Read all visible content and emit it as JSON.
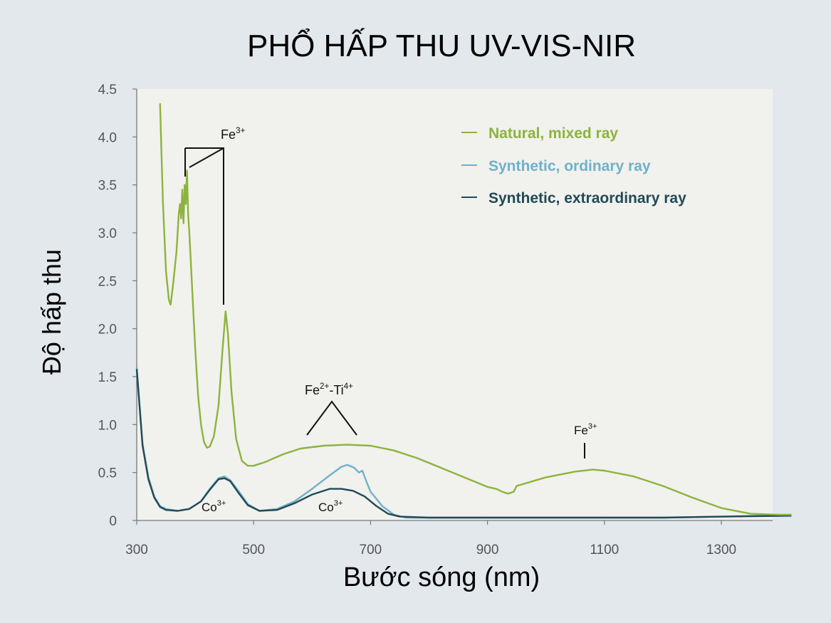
{
  "page_title": "PHỔ HẤP THU UV-VIS-NIR",
  "chart_data": {
    "type": "line",
    "title": "PHỔ HẤP THU UV-VIS-NIR",
    "xlabel": "Bước sóng (nm)",
    "ylabel": "Độ hấp thu",
    "xlim": [
      300,
      1420
    ],
    "ylim": [
      0,
      4.5
    ],
    "x_ticks": [
      300,
      500,
      700,
      900,
      1100,
      1300
    ],
    "y_ticks": [
      0,
      0.5,
      1.0,
      1.5,
      2.0,
      2.5,
      3.0,
      3.5,
      4.0,
      4.5
    ],
    "y_tick_labels": [
      "0",
      "0.5",
      "1.0",
      "1.5",
      "2.0",
      "2.5",
      "3.0",
      "3.5",
      "4.0",
      "4.5"
    ],
    "grid": false,
    "legend_position": "top-right",
    "series": [
      {
        "name": "Natural, mixed ray",
        "color": "#8db33c",
        "points": [
          [
            340,
            4.35
          ],
          [
            342,
            3.9
          ],
          [
            345,
            3.3
          ],
          [
            350,
            2.6
          ],
          [
            355,
            2.3
          ],
          [
            358,
            2.25
          ],
          [
            362,
            2.45
          ],
          [
            368,
            2.8
          ],
          [
            372,
            3.2
          ],
          [
            374,
            3.3
          ],
          [
            376,
            3.15
          ],
          [
            378,
            3.45
          ],
          [
            380,
            3.1
          ],
          [
            382,
            3.5
          ],
          [
            384,
            3.3
          ],
          [
            386,
            3.65
          ],
          [
            388,
            3.2
          ],
          [
            390,
            3.0
          ],
          [
            395,
            2.4
          ],
          [
            400,
            1.8
          ],
          [
            405,
            1.3
          ],
          [
            410,
            1.0
          ],
          [
            415,
            0.82
          ],
          [
            420,
            0.76
          ],
          [
            425,
            0.77
          ],
          [
            432,
            0.88
          ],
          [
            440,
            1.2
          ],
          [
            447,
            1.8
          ],
          [
            452,
            2.18
          ],
          [
            456,
            1.95
          ],
          [
            462,
            1.35
          ],
          [
            470,
            0.85
          ],
          [
            480,
            0.62
          ],
          [
            490,
            0.57
          ],
          [
            500,
            0.57
          ],
          [
            520,
            0.61
          ],
          [
            550,
            0.69
          ],
          [
            580,
            0.75
          ],
          [
            620,
            0.78
          ],
          [
            660,
            0.79
          ],
          [
            700,
            0.78
          ],
          [
            740,
            0.73
          ],
          [
            780,
            0.65
          ],
          [
            820,
            0.55
          ],
          [
            860,
            0.45
          ],
          [
            900,
            0.35
          ],
          [
            915,
            0.33
          ],
          [
            925,
            0.3
          ],
          [
            935,
            0.28
          ],
          [
            945,
            0.3
          ],
          [
            950,
            0.36
          ],
          [
            1000,
            0.45
          ],
          [
            1050,
            0.51
          ],
          [
            1080,
            0.53
          ],
          [
            1100,
            0.52
          ],
          [
            1150,
            0.46
          ],
          [
            1200,
            0.36
          ],
          [
            1250,
            0.24
          ],
          [
            1300,
            0.13
          ],
          [
            1350,
            0.07
          ],
          [
            1400,
            0.06
          ],
          [
            1420,
            0.06
          ]
        ]
      },
      {
        "name": "Synthetic, ordinary ray",
        "color": "#6fb1c8",
        "points": [
          [
            300,
            1.6
          ],
          [
            305,
            1.2
          ],
          [
            310,
            0.8
          ],
          [
            320,
            0.45
          ],
          [
            330,
            0.25
          ],
          [
            340,
            0.15
          ],
          [
            350,
            0.12
          ],
          [
            370,
            0.1
          ],
          [
            390,
            0.12
          ],
          [
            410,
            0.2
          ],
          [
            425,
            0.33
          ],
          [
            440,
            0.44
          ],
          [
            450,
            0.46
          ],
          [
            460,
            0.42
          ],
          [
            475,
            0.3
          ],
          [
            490,
            0.17
          ],
          [
            510,
            0.1
          ],
          [
            540,
            0.12
          ],
          [
            570,
            0.2
          ],
          [
            600,
            0.33
          ],
          [
            630,
            0.47
          ],
          [
            650,
            0.56
          ],
          [
            660,
            0.58
          ],
          [
            672,
            0.55
          ],
          [
            680,
            0.5
          ],
          [
            686,
            0.52
          ],
          [
            692,
            0.42
          ],
          [
            700,
            0.3
          ],
          [
            720,
            0.15
          ],
          [
            740,
            0.06
          ],
          [
            760,
            0.03
          ],
          [
            800,
            0.03
          ],
          [
            900,
            0.03
          ],
          [
            1000,
            0.03
          ],
          [
            1100,
            0.03
          ],
          [
            1200,
            0.03
          ],
          [
            1300,
            0.04
          ],
          [
            1420,
            0.06
          ]
        ]
      },
      {
        "name": "Synthetic, extraordinary ray",
        "color": "#214a56",
        "points": [
          [
            300,
            1.58
          ],
          [
            305,
            1.18
          ],
          [
            310,
            0.78
          ],
          [
            320,
            0.43
          ],
          [
            330,
            0.24
          ],
          [
            340,
            0.14
          ],
          [
            350,
            0.11
          ],
          [
            370,
            0.1
          ],
          [
            390,
            0.12
          ],
          [
            410,
            0.2
          ],
          [
            425,
            0.32
          ],
          [
            440,
            0.43
          ],
          [
            450,
            0.44
          ],
          [
            460,
            0.41
          ],
          [
            475,
            0.28
          ],
          [
            490,
            0.16
          ],
          [
            510,
            0.1
          ],
          [
            540,
            0.11
          ],
          [
            570,
            0.18
          ],
          [
            600,
            0.27
          ],
          [
            630,
            0.33
          ],
          [
            650,
            0.33
          ],
          [
            670,
            0.31
          ],
          [
            690,
            0.25
          ],
          [
            710,
            0.15
          ],
          [
            730,
            0.07
          ],
          [
            750,
            0.04
          ],
          [
            800,
            0.03
          ],
          [
            900,
            0.03
          ],
          [
            1000,
            0.03
          ],
          [
            1100,
            0.03
          ],
          [
            1200,
            0.03
          ],
          [
            1300,
            0.04
          ],
          [
            1420,
            0.05
          ]
        ]
      }
    ],
    "annotations": [
      {
        "id": "fe3-uv",
        "base": "Fe",
        "sup": "3+"
      },
      {
        "id": "fe2-ti4",
        "base": "Fe",
        "sup": "2+",
        "base2": "-Ti",
        "sup2": "4+"
      },
      {
        "id": "fe3-nir",
        "base": "Fe",
        "sup": "3+"
      },
      {
        "id": "co3-left",
        "base": "Co",
        "sup": "3+"
      },
      {
        "id": "co3-right",
        "base": "Co",
        "sup": "3+"
      }
    ]
  }
}
